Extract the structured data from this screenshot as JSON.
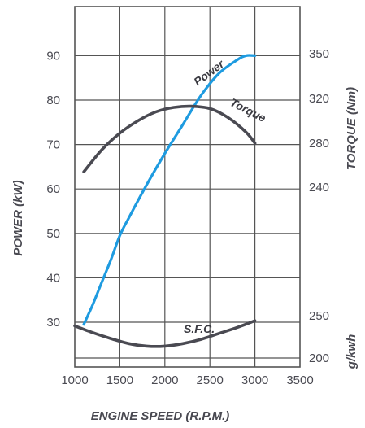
{
  "chart_data": {
    "type": "line",
    "title": "",
    "xlabel": "ENGINE SPEED (R.P.M.)",
    "ylabel_left": "POWER (kW)",
    "ylabel_right_torque": "TORQUE (Nm)",
    "ylabel_right_sfc": "g/kwh",
    "x_ticks": [
      "1000",
      "1500",
      "2000",
      "2500",
      "3000",
      "3500"
    ],
    "power_ticks": [
      "30",
      "40",
      "50",
      "60",
      "70",
      "80",
      "90"
    ],
    "torque_ticks": [
      "240",
      "280",
      "320",
      "350"
    ],
    "sfc_ticks": [
      "200",
      "250"
    ],
    "xlim": [
      1000,
      3500
    ],
    "power_ylim": [
      20,
      97
    ],
    "grid": true,
    "series": [
      {
        "name": "Power",
        "axis": "power",
        "color": "#1e9be0",
        "x": [
          1100,
          1200,
          1300,
          1400,
          1500,
          1600,
          1800,
          2000,
          2200,
          2400,
          2600,
          2800,
          2900,
          3000
        ],
        "values": [
          29.5,
          34,
          39,
          44,
          49.5,
          53.5,
          61,
          68,
          74.5,
          81,
          86,
          89,
          90,
          90
        ]
      },
      {
        "name": "Torque",
        "axis": "torque",
        "color": "#4a4a52",
        "x": [
          1100,
          1300,
          1500,
          1700,
          1900,
          2100,
          2300,
          2500,
          2700,
          2900,
          3000
        ],
        "values": [
          254,
          274,
          289,
          300,
          308,
          312,
          313,
          311,
          303,
          290,
          280
        ]
      },
      {
        "name": "S.F.C.",
        "axis": "sfc",
        "color": "#4a4a52",
        "x": [
          1000,
          1200,
          1400,
          1600,
          1800,
          2000,
          2200,
          2400,
          2600,
          2800,
          3000
        ],
        "values": [
          238,
          230,
          223,
          217,
          214,
          214,
          217,
          222,
          229,
          236,
          244
        ]
      }
    ]
  }
}
